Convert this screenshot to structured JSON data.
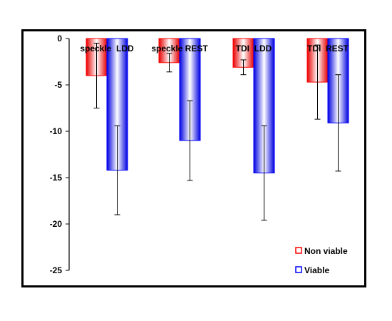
{
  "chart_data": {
    "type": "bar",
    "title": "",
    "xlabel": "",
    "ylabel": "",
    "ylim": [
      -25,
      0
    ],
    "yticks": [
      0,
      -5,
      -10,
      -15,
      -20,
      -25
    ],
    "categories": [
      "speckle  LDD",
      "speckle REST",
      "TDI  LDD",
      "TDI  REST"
    ],
    "series": [
      {
        "name": "Non viable",
        "values": [
          -4.0,
          -2.6,
          -3.1,
          -4.7
        ],
        "errors": [
          3.5,
          1.0,
          0.8,
          4.0
        ]
      },
      {
        "name": "Viable",
        "values": [
          -14.2,
          -11.0,
          -14.5,
          -9.1
        ],
        "errors": [
          4.8,
          4.3,
          5.1,
          5.2
        ]
      }
    ],
    "legend_position": "bottom-right",
    "grid": false,
    "colors": {
      "nonviable": "#ff0000",
      "viable": "#0000ff",
      "axis": "#000000"
    }
  }
}
